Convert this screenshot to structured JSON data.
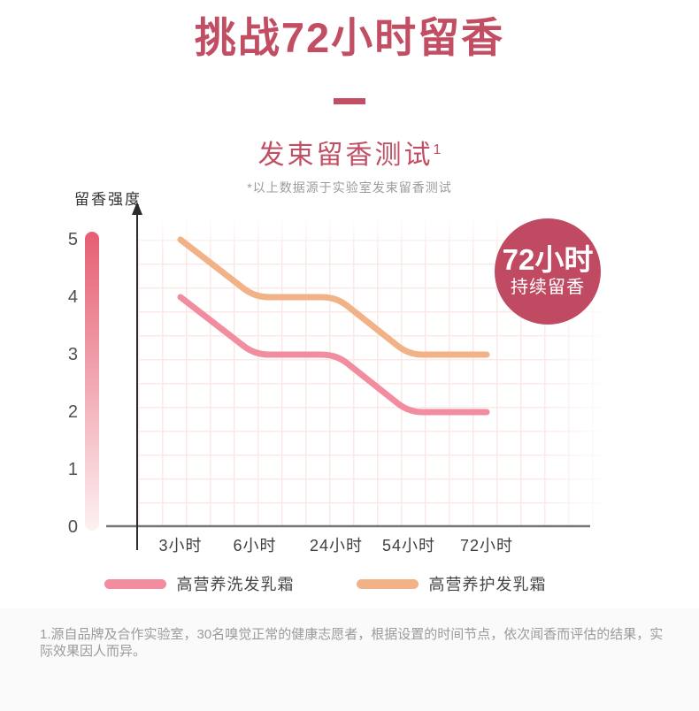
{
  "header": {
    "title": "挑战72小时留香",
    "subtitle": "发束留香测试",
    "subtitle_superscript": "1",
    "note": "*以上数据源于实验室发束留香测试"
  },
  "badge": {
    "line1": "72小时",
    "line2": "持续留香",
    "color": "#c14a63"
  },
  "chart_data": {
    "type": "line",
    "title": "发束留香测试",
    "categories": [
      "3小时",
      "6小时",
      "24小时",
      "54小时",
      "72小时"
    ],
    "series": [
      {
        "name": "高营养洗发乳霜",
        "color": "#f28da0",
        "values": [
          4,
          3,
          3,
          2,
          2
        ]
      },
      {
        "name": "高营养护发乳霜",
        "color": "#f1b287",
        "values": [
          5,
          4,
          4,
          3,
          3
        ]
      }
    ],
    "xlabel": "",
    "ylabel": "留香强度",
    "yticks": [
      5,
      4,
      3,
      2,
      1,
      0
    ],
    "ylim": [
      0,
      5
    ],
    "grid": true,
    "legend_position": "bottom"
  },
  "footnote": {
    "text": "1.源自品牌及合作实验室，30名嗅觉正常的健康志愿者，根据设置的时间节点，依次闻香而评估的结果，实际效果因人而异。"
  },
  "colors": {
    "accent": "#c24e63",
    "grid_line": "#fbe9e8",
    "axis_line": "#2b2b2b",
    "x_axis_line": "#767676",
    "intensity_bar_top": "#e65e72",
    "intensity_bar_bottom": "#fdf1f2"
  }
}
